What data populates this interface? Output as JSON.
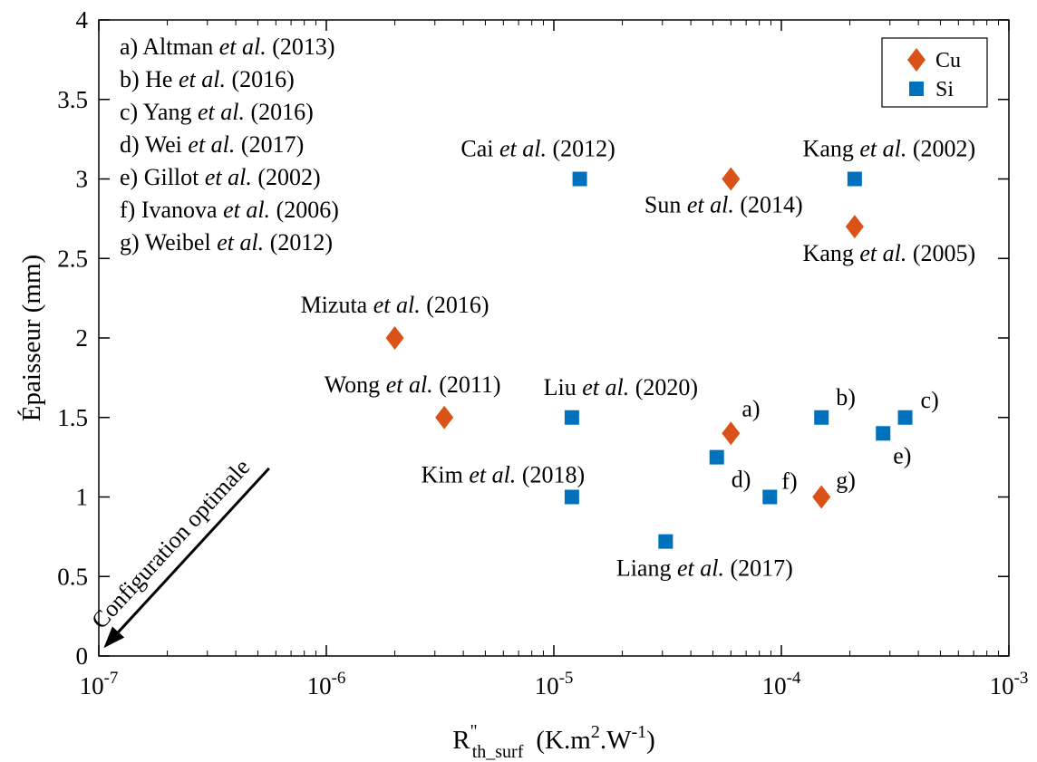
{
  "chart_data": {
    "type": "scatter",
    "x_scale": "log",
    "xlim": [
      1e-07,
      0.001
    ],
    "ylim": [
      0,
      4
    ],
    "x_ticks": [
      {
        "value": 1e-07,
        "base": "10",
        "exp": "-7"
      },
      {
        "value": 1e-06,
        "base": "10",
        "exp": "-6"
      },
      {
        "value": 1e-05,
        "base": "10",
        "exp": "-5"
      },
      {
        "value": 0.0001,
        "base": "10",
        "exp": "-4"
      },
      {
        "value": 0.001,
        "base": "10",
        "exp": "-3"
      }
    ],
    "y_ticks": [
      {
        "value": 0,
        "label": "0"
      },
      {
        "value": 0.5,
        "label": "0.5"
      },
      {
        "value": 1,
        "label": "1"
      },
      {
        "value": 1.5,
        "label": "1.5"
      },
      {
        "value": 2,
        "label": "2"
      },
      {
        "value": 2.5,
        "label": "2.5"
      },
      {
        "value": 3,
        "label": "3"
      },
      {
        "value": 3.5,
        "label": "3.5"
      },
      {
        "value": 4,
        "label": "4"
      }
    ],
    "xlabel": {
      "main": "R",
      "sup": "\"",
      "sub": "th_surf",
      "units_a": "(K.m",
      "units_sup1": "2",
      "units_b": ".W",
      "units_sup2": "-1",
      "units_c": ")"
    },
    "ylabel": "Épaisseur (mm)",
    "grid": false,
    "legend_position": "top-right",
    "series": [
      {
        "name": "Cu",
        "marker": "diamond",
        "color": "#d95319",
        "points": [
          {
            "x": 2e-06,
            "y": 2.0
          },
          {
            "x": 3.3e-06,
            "y": 1.5
          },
          {
            "x": 6e-05,
            "y": 3.0
          },
          {
            "x": 6e-05,
            "y": 1.4
          },
          {
            "x": 0.00015,
            "y": 1.0
          },
          {
            "x": 0.00021,
            "y": 2.7
          }
        ]
      },
      {
        "name": "Si",
        "marker": "square",
        "color": "#0072bd",
        "points": [
          {
            "x": 1.3e-05,
            "y": 3.0
          },
          {
            "x": 1.2e-05,
            "y": 1.5
          },
          {
            "x": 1.2e-05,
            "y": 1.0
          },
          {
            "x": 3.1e-05,
            "y": 0.72
          },
          {
            "x": 5.2e-05,
            "y": 1.25
          },
          {
            "x": 8.9e-05,
            "y": 1.0
          },
          {
            "x": 0.00015,
            "y": 1.5
          },
          {
            "x": 0.00021,
            "y": 3.0
          },
          {
            "x": 0.00028,
            "y": 1.4
          },
          {
            "x": 0.00035,
            "y": 1.5
          }
        ]
      }
    ],
    "point_labels": [
      {
        "x": 2e-06,
        "y": 2.0,
        "parts": [
          {
            "t": "Mizuta "
          },
          {
            "t": "et al.",
            "i": true
          },
          {
            "t": " (2016)"
          }
        ],
        "anchor": "middle",
        "dx": 0,
        "dy": -28
      },
      {
        "x": 3.3e-06,
        "y": 1.5,
        "parts": [
          {
            "t": "Wong "
          },
          {
            "t": "et al.",
            "i": true
          },
          {
            "t": " (2011)"
          }
        ],
        "anchor": "middle",
        "dx": -35,
        "dy": -28
      },
      {
        "x": 1.3e-05,
        "y": 3.0,
        "parts": [
          {
            "t": "Cai "
          },
          {
            "t": "et al.",
            "i": true
          },
          {
            "t": " (2012)"
          }
        ],
        "anchor": "middle",
        "dx": -46,
        "dy": -25
      },
      {
        "x": 6e-05,
        "y": 3.0,
        "parts": [
          {
            "t": "Sun "
          },
          {
            "t": "et al.",
            "i": true
          },
          {
            "t": " (2014)"
          }
        ],
        "anchor": "middle",
        "dx": -8,
        "dy": 37
      },
      {
        "x": 0.00021,
        "y": 3.0,
        "parts": [
          {
            "t": "Kang "
          },
          {
            "t": "et al.",
            "i": true
          },
          {
            "t": " (2002)"
          }
        ],
        "anchor": "middle",
        "dx": 38,
        "dy": -25
      },
      {
        "x": 0.00021,
        "y": 2.7,
        "parts": [
          {
            "t": "Kang "
          },
          {
            "t": "et al.",
            "i": true
          },
          {
            "t": " (2005)"
          }
        ],
        "anchor": "middle",
        "dx": 38,
        "dy": 38
      },
      {
        "x": 1.2e-05,
        "y": 1.5,
        "parts": [
          {
            "t": "Liu "
          },
          {
            "t": "et al.",
            "i": true
          },
          {
            "t": " (2020)"
          }
        ],
        "anchor": "middle",
        "dx": 54,
        "dy": -25
      },
      {
        "x": 1.2e-05,
        "y": 1.0,
        "parts": [
          {
            "t": "Kim "
          },
          {
            "t": "et al.",
            "i": true
          },
          {
            "t": " (2018)"
          }
        ],
        "anchor": "middle",
        "dx": -76,
        "dy": -16
      },
      {
        "x": 3.1e-05,
        "y": 0.72,
        "parts": [
          {
            "t": "Liang "
          },
          {
            "t": "et al.",
            "i": true
          },
          {
            "t": " (2017)"
          }
        ],
        "anchor": "middle",
        "dx": 43,
        "dy": 38
      },
      {
        "x": 6e-05,
        "y": 1.4,
        "parts": [
          {
            "t": "a)"
          }
        ],
        "anchor": "start",
        "dx": 12,
        "dy": -19
      },
      {
        "x": 0.00015,
        "y": 1.5,
        "parts": [
          {
            "t": "b)"
          }
        ],
        "anchor": "start",
        "dx": 16,
        "dy": -14
      },
      {
        "x": 0.00035,
        "y": 1.5,
        "parts": [
          {
            "t": "c)"
          }
        ],
        "anchor": "start",
        "dx": 17,
        "dy": -11
      },
      {
        "x": 5.2e-05,
        "y": 1.25,
        "parts": [
          {
            "t": "d)"
          }
        ],
        "anchor": "start",
        "dx": 16,
        "dy": 33
      },
      {
        "x": 0.00028,
        "y": 1.4,
        "parts": [
          {
            "t": "e)"
          }
        ],
        "anchor": "start",
        "dx": 11,
        "dy": 33
      },
      {
        "x": 8.9e-05,
        "y": 1.0,
        "parts": [
          {
            "t": "f)"
          }
        ],
        "anchor": "start",
        "dx": 13,
        "dy": -9
      },
      {
        "x": 0.00015,
        "y": 1.0,
        "parts": [
          {
            "t": "g)"
          }
        ],
        "anchor": "start",
        "dx": 16,
        "dy": -10
      }
    ],
    "references": [
      [
        {
          "t": "a)  Altman "
        },
        {
          "t": "et al.",
          "i": true
        },
        {
          "t": " (2013)"
        }
      ],
      [
        {
          "t": "b) He "
        },
        {
          "t": "et al.",
          "i": true
        },
        {
          "t": " (2016)"
        }
      ],
      [
        {
          "t": "c)  Yang "
        },
        {
          "t": "et al.",
          "i": true
        },
        {
          "t": " (2016)"
        }
      ],
      [
        {
          "t": "d)  Wei "
        },
        {
          "t": "et al.",
          "i": true
        },
        {
          "t": " (2017)"
        }
      ],
      [
        {
          "t": "e)  Gillot "
        },
        {
          "t": "et al.",
          "i": true
        },
        {
          "t": " (2002)"
        }
      ],
      [
        {
          "t": " f)  Ivanova "
        },
        {
          "t": "et al.",
          "i": true
        },
        {
          "t": " (2006)"
        }
      ],
      [
        {
          "t": "g)  Weibel "
        },
        {
          "t": "et al.",
          "i": true
        },
        {
          "t": " (2012)"
        }
      ]
    ],
    "annotation": {
      "text": "Configuration optimale",
      "from": {
        "x": 5.6e-07,
        "y": 1.18
      },
      "to": {
        "x": 1.05e-07,
        "y": 0.05
      }
    }
  }
}
